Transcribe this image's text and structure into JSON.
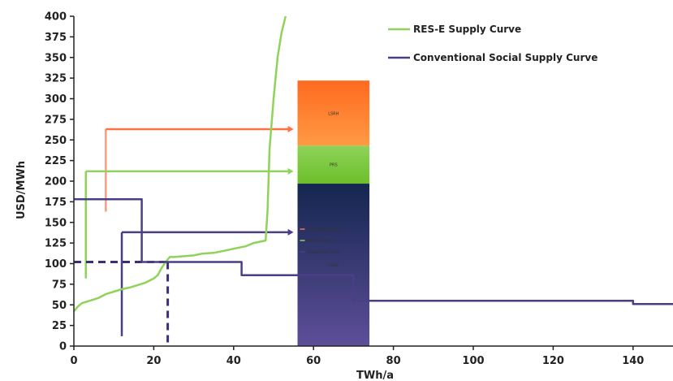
{
  "chart_data": {
    "type": "line",
    "xlabel": "TWh/a",
    "ylabel": "USD/MWh",
    "xlim": [
      0,
      150
    ],
    "ylim": [
      0,
      400
    ],
    "x_ticks": [
      0,
      20,
      40,
      60,
      80,
      100,
      120,
      140
    ],
    "y_ticks": [
      0,
      25,
      50,
      75,
      100,
      125,
      150,
      175,
      200,
      225,
      250,
      275,
      300,
      325,
      350,
      375,
      400
    ],
    "grid": false,
    "legend_position": "top-right",
    "series": [
      {
        "name": "RES-E Supply Curve",
        "color": "#8fd35a",
        "x": [
          0,
          1,
          2,
          4,
          6,
          8,
          10,
          12,
          14,
          16,
          18,
          20,
          21,
          22,
          23,
          24,
          25,
          30,
          32,
          35,
          38,
          40,
          42,
          43,
          45,
          46,
          48,
          48.5,
          49,
          50,
          51,
          52,
          53
        ],
        "y": [
          42,
          48,
          52,
          55,
          58,
          63,
          66,
          69,
          71,
          74,
          77,
          82,
          86,
          95,
          102,
          108,
          108,
          110,
          112,
          113,
          116,
          118,
          120,
          121,
          125,
          126,
          128,
          165,
          240,
          300,
          350,
          380,
          400
        ]
      },
      {
        "name": "Conventional Social Supply Curve",
        "color": "#4a3f86",
        "x": [
          0,
          17,
          17,
          42,
          42,
          70,
          70,
          140,
          140,
          150
        ],
        "y": [
          178,
          178,
          102,
          102,
          86,
          86,
          55,
          55,
          51,
          51
        ]
      }
    ],
    "annotations": {
      "horizontal_arrows": [
        {
          "color": "#ff7043",
          "y": 263,
          "x_from": 8,
          "x_to": 55
        },
        {
          "color": "#8fd35a",
          "y": 212,
          "x_from": 3,
          "x_to": 55
        },
        {
          "color": "#4a3f86",
          "y": 138,
          "x_from": 12,
          "x_to": 55
        }
      ],
      "vertical_lines": [
        {
          "color": "#ff9a80",
          "x": 8,
          "y_from": 163,
          "y_to": 263
        },
        {
          "color": "#8fd35a",
          "x": 3,
          "y_from": 82,
          "y_to": 212
        },
        {
          "color": "#4a3f86",
          "x": 12,
          "y_from": 12,
          "y_to": 138
        }
      ],
      "dashed_lines": [
        {
          "color": "#3b2f7a",
          "from": [
            0,
            102
          ],
          "to": [
            23.5,
            102
          ]
        },
        {
          "color": "#3b2f7a",
          "from": [
            23.5,
            102
          ],
          "to": [
            23.5,
            0
          ]
        }
      ],
      "stacked_bar": {
        "x_from": 56,
        "x_to": 74,
        "segments": [
          {
            "from": 0,
            "to": 197,
            "color_top": "#14264f",
            "color_bottom": "#5e4e99",
            "label": "LSGC"
          },
          {
            "from": 197,
            "to": 243,
            "color_top": "#8fd35a",
            "color_bottom": "#6cbf2a",
            "label": "PRS"
          },
          {
            "from": 243,
            "to": 322,
            "color_top": "#ff6a1f",
            "color_bottom": "#ff9a44",
            "label": "LSRH"
          }
        ]
      },
      "inner_legend": [
        {
          "color": "#ff7043",
          "label": "Consumer Surplus"
        },
        {
          "color": "#8fd35a",
          "label": "RES-E Surplus"
        },
        {
          "color": "#4a3f86",
          "label": "Generation Cost"
        }
      ]
    }
  }
}
